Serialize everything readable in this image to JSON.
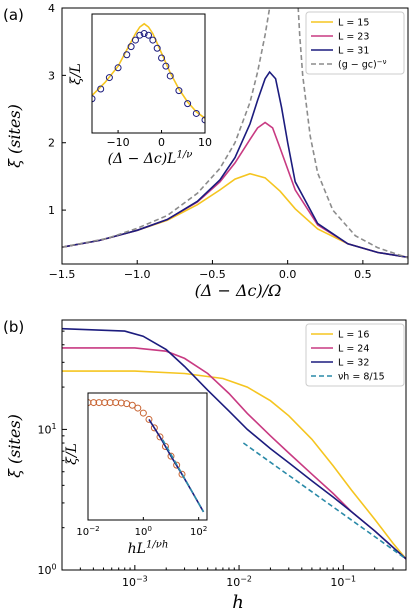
{
  "chart_data": [
    {
      "panel_label": "(a)",
      "type": "line",
      "xlabel": "(Δ − Δc)/Ω",
      "ylabel": "ξ (sites)",
      "xlim": [
        -1.5,
        0.8
      ],
      "ylim": [
        0.2,
        4.0
      ],
      "xticks": [
        -1.5,
        -1.0,
        -0.5,
        0.0,
        0.5
      ],
      "xtick_labels": [
        "−1.5",
        "−1.0",
        "−0.5",
        "0.0",
        "0.5"
      ],
      "yticks": [
        1,
        2,
        3,
        4
      ],
      "ytick_labels": [
        "1",
        "2",
        "3",
        "4"
      ],
      "legend_position": "top-right",
      "series": [
        {
          "name": "L = 15",
          "color": "#f5c520",
          "style": "solid",
          "x": [
            -1.5,
            -1.25,
            -1.0,
            -0.8,
            -0.6,
            -0.45,
            -0.35,
            -0.25,
            -0.15,
            -0.05,
            0.05,
            0.2,
            0.4,
            0.6,
            0.8
          ],
          "y": [
            0.45,
            0.55,
            0.7,
            0.85,
            1.08,
            1.3,
            1.46,
            1.54,
            1.48,
            1.28,
            1.02,
            0.72,
            0.5,
            0.37,
            0.3
          ]
        },
        {
          "name": "L = 23",
          "color": "#c83a82",
          "style": "solid",
          "x": [
            -1.5,
            -1.25,
            -1.0,
            -0.8,
            -0.6,
            -0.45,
            -0.35,
            -0.25,
            -0.2,
            -0.15,
            -0.1,
            -0.05,
            0.05,
            0.2,
            0.4,
            0.6,
            0.8
          ],
          "y": [
            0.45,
            0.55,
            0.7,
            0.86,
            1.12,
            1.42,
            1.7,
            2.05,
            2.22,
            2.3,
            2.22,
            1.92,
            1.3,
            0.78,
            0.5,
            0.37,
            0.3
          ]
        },
        {
          "name": "L = 31",
          "color": "#1c1c7e",
          "style": "solid",
          "x": [
            -1.5,
            -1.25,
            -1.0,
            -0.8,
            -0.6,
            -0.45,
            -0.35,
            -0.25,
            -0.2,
            -0.15,
            -0.12,
            -0.08,
            -0.04,
            0.0,
            0.05,
            0.2,
            0.4,
            0.6,
            0.8
          ],
          "y": [
            0.45,
            0.55,
            0.7,
            0.86,
            1.13,
            1.45,
            1.78,
            2.28,
            2.63,
            2.95,
            3.05,
            2.95,
            2.52,
            2.0,
            1.42,
            0.8,
            0.5,
            0.37,
            0.3
          ]
        },
        {
          "name": "(g − gc)^−ν",
          "color": "#8c8c8c",
          "style": "dashed",
          "x": [
            -1.5,
            -1.2,
            -1.0,
            -0.8,
            -0.6,
            -0.45,
            -0.35,
            -0.25,
            -0.2,
            -0.15,
            -0.12,
            -0.09,
            -0.07,
            -0.055
          ],
          "y": [
            0.45,
            0.58,
            0.73,
            0.92,
            1.25,
            1.62,
            2.0,
            2.6,
            3.05,
            3.6,
            4.0,
            4.4,
            4.8,
            5.2
          ],
          "x2": [
            0.045,
            0.06,
            0.08,
            0.1,
            0.15,
            0.2,
            0.3,
            0.45,
            0.6,
            0.8
          ],
          "y2": [
            5.2,
            4.4,
            3.6,
            3.0,
            2.1,
            1.55,
            1.0,
            0.62,
            0.44,
            0.29
          ]
        }
      ]
    },
    {
      "panel_label": "",
      "type": "scatter",
      "inset_of": "(a)",
      "xlabel": "(Δ − Δc)L^1/ν",
      "ylabel": "ξ/L",
      "xlim": [
        -16,
        10
      ],
      "xticks": [
        -10,
        0,
        10
      ],
      "xtick_labels": [
        "−10",
        "0",
        "10"
      ],
      "series": [
        {
          "name": "L = 15",
          "color": "#f5c520",
          "style": "solid",
          "x": [
            -16,
            -13,
            -10,
            -8,
            -6,
            -5,
            -4,
            -3,
            -2,
            -1,
            0,
            2,
            4,
            6,
            8,
            10
          ],
          "y": [
            0.38,
            0.46,
            0.56,
            0.66,
            0.76,
            0.8,
            0.82,
            0.8,
            0.76,
            0.7,
            0.64,
            0.52,
            0.42,
            0.34,
            0.28,
            0.24
          ]
        },
        {
          "name": "L = 31",
          "color": "#1c1c7e",
          "style": "markers",
          "x": [
            -16,
            -14,
            -12,
            -10,
            -8,
            -7,
            -6,
            -5,
            -4,
            -3,
            -2,
            -1,
            0,
            1,
            2,
            4,
            6,
            8,
            10
          ],
          "y": [
            0.36,
            0.42,
            0.49,
            0.55,
            0.63,
            0.68,
            0.72,
            0.75,
            0.76,
            0.75,
            0.72,
            0.67,
            0.61,
            0.56,
            0.5,
            0.41,
            0.33,
            0.27,
            0.23
          ]
        }
      ]
    },
    {
      "panel_label": "(b)",
      "type": "line",
      "xlabel": "h",
      "ylabel": "ξ (sites)",
      "xscale": "log",
      "yscale": "log",
      "xlim": [
        0.0002,
        0.4
      ],
      "ylim": [
        1.0,
        60
      ],
      "xtick_labels": [
        "10^−3",
        "10^−2",
        "10^−1"
      ],
      "ytick_labels": [
        "10^0",
        "10^1"
      ],
      "legend_position": "top-right",
      "series": [
        {
          "name": "L = 16",
          "color": "#f5c520",
          "style": "solid",
          "x": [
            0.0002,
            0.001,
            0.003,
            0.007,
            0.012,
            0.02,
            0.03,
            0.05,
            0.08,
            0.12,
            0.2,
            0.3,
            0.4
          ],
          "y": [
            26,
            26,
            25,
            23,
            20,
            16,
            12.5,
            8.5,
            5.5,
            3.7,
            2.3,
            1.55,
            1.2
          ]
        },
        {
          "name": "L = 24",
          "color": "#c83a82",
          "style": "solid",
          "x": [
            0.0002,
            0.001,
            0.002,
            0.003,
            0.005,
            0.008,
            0.012,
            0.02,
            0.03,
            0.05,
            0.08,
            0.12,
            0.2,
            0.3,
            0.4
          ],
          "y": [
            38,
            38,
            36,
            32,
            25,
            18,
            13,
            9,
            6.8,
            4.8,
            3.5,
            2.6,
            1.9,
            1.45,
            1.2
          ]
        },
        {
          "name": "L = 32",
          "color": "#1c1c7e",
          "style": "solid",
          "x": [
            0.0002,
            0.0008,
            0.0012,
            0.002,
            0.003,
            0.005,
            0.008,
            0.012,
            0.02,
            0.03,
            0.05,
            0.08,
            0.12,
            0.2,
            0.3,
            0.4
          ],
          "y": [
            52,
            50,
            46,
            37,
            28,
            19,
            13.5,
            10,
            7.3,
            5.8,
            4.3,
            3.3,
            2.6,
            1.9,
            1.45,
            1.2
          ]
        },
        {
          "name": "νh = 8/15",
          "color": "#2a8aa8",
          "style": "dashed",
          "x": [
            0.011,
            0.4
          ],
          "y": [
            8.0,
            1.2
          ]
        }
      ]
    },
    {
      "panel_label": "",
      "type": "scatter",
      "inset_of": "(b)",
      "xlabel": "hL^1/νh",
      "ylabel": "ξ/L",
      "xscale": "log",
      "yscale": "log",
      "xtick_labels": [
        "10^−2",
        "10^0",
        "10^2"
      ],
      "series": [
        {
          "name": "markers",
          "color": "#c86432",
          "style": "markers",
          "x": [
            0.01,
            0.016,
            0.025,
            0.04,
            0.063,
            0.1,
            0.16,
            0.25,
            0.4,
            0.63,
            1,
            1.6,
            2.5,
            4,
            6.3,
            10,
            16,
            25
          ],
          "y": [
            2.0,
            2.0,
            2.0,
            2.0,
            2.0,
            2.0,
            1.98,
            1.94,
            1.86,
            1.72,
            1.5,
            1.26,
            1.0,
            0.78,
            0.6,
            0.46,
            0.36,
            0.28
          ]
        },
        {
          "name": "L = 32",
          "color": "#1c1c7e",
          "style": "solid",
          "x": [
            1.6,
            4,
            10,
            25,
            60,
            150
          ],
          "y": [
            1.26,
            0.78,
            0.46,
            0.28,
            0.17,
            0.1
          ]
        },
        {
          "name": "νh = 8/15",
          "color": "#2a8aa8",
          "style": "dashed",
          "x": [
            5,
            150
          ],
          "y": [
            0.72,
            0.1
          ]
        }
      ]
    }
  ]
}
